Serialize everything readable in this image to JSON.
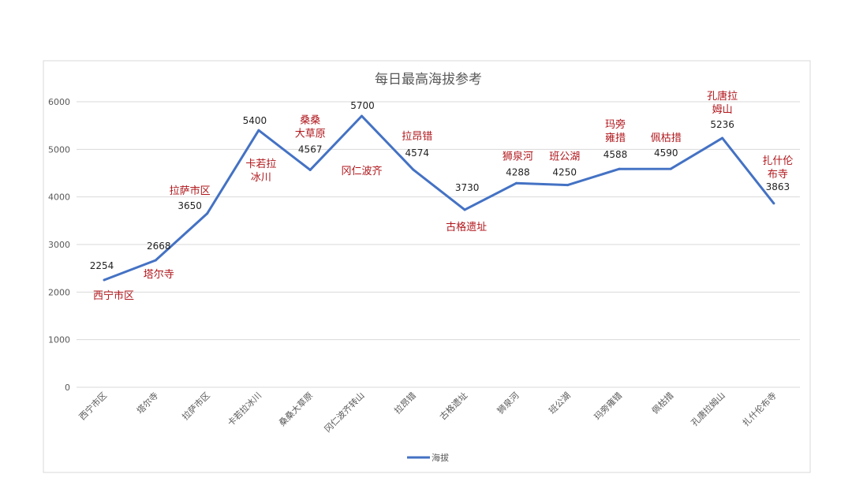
{
  "chart_data": {
    "type": "line",
    "title": "每日最高海拔参考",
    "categories": [
      "西宁市区",
      "塔尔寺",
      "拉萨市区",
      "卡若拉冰川",
      "桑桑大草原",
      "冈仁波齐转山",
      "拉昂错",
      "古格遗址",
      "狮泉河",
      "班公湖",
      "玛旁雍错",
      "佩枯措",
      "孔唐拉姆山",
      "扎什伦布寺"
    ],
    "series": [
      {
        "name": "海拔",
        "values": [
          2254,
          2668,
          3650,
          5400,
          4567,
          5700,
          4574,
          3730,
          4288,
          4250,
          4588,
          4590,
          5236,
          3863
        ],
        "color": "#4472c4"
      }
    ],
    "annotations": [
      [
        "西宁市区"
      ],
      [
        "塔尔寺"
      ],
      [
        "拉萨市区"
      ],
      [
        "卡若拉",
        "冰川"
      ],
      [
        "桑桑",
        "大草原"
      ],
      [
        "冈仁波齐"
      ],
      [
        "拉昂错"
      ],
      [
        "古格遗址"
      ],
      [
        "狮泉河"
      ],
      [
        "班公湖"
      ],
      [
        "玛旁",
        "雍措"
      ],
      [
        "佩枯措"
      ],
      [
        "孔唐拉",
        "姆山"
      ],
      [
        "扎什伦",
        "布寺"
      ]
    ],
    "annotation_color": "#b0161b",
    "ylim": [
      0,
      6000
    ],
    "yticks": [
      0,
      1000,
      2000,
      3000,
      4000,
      5000,
      6000
    ],
    "grid": true,
    "legend": "bottom",
    "xlabel": "",
    "ylabel": ""
  }
}
